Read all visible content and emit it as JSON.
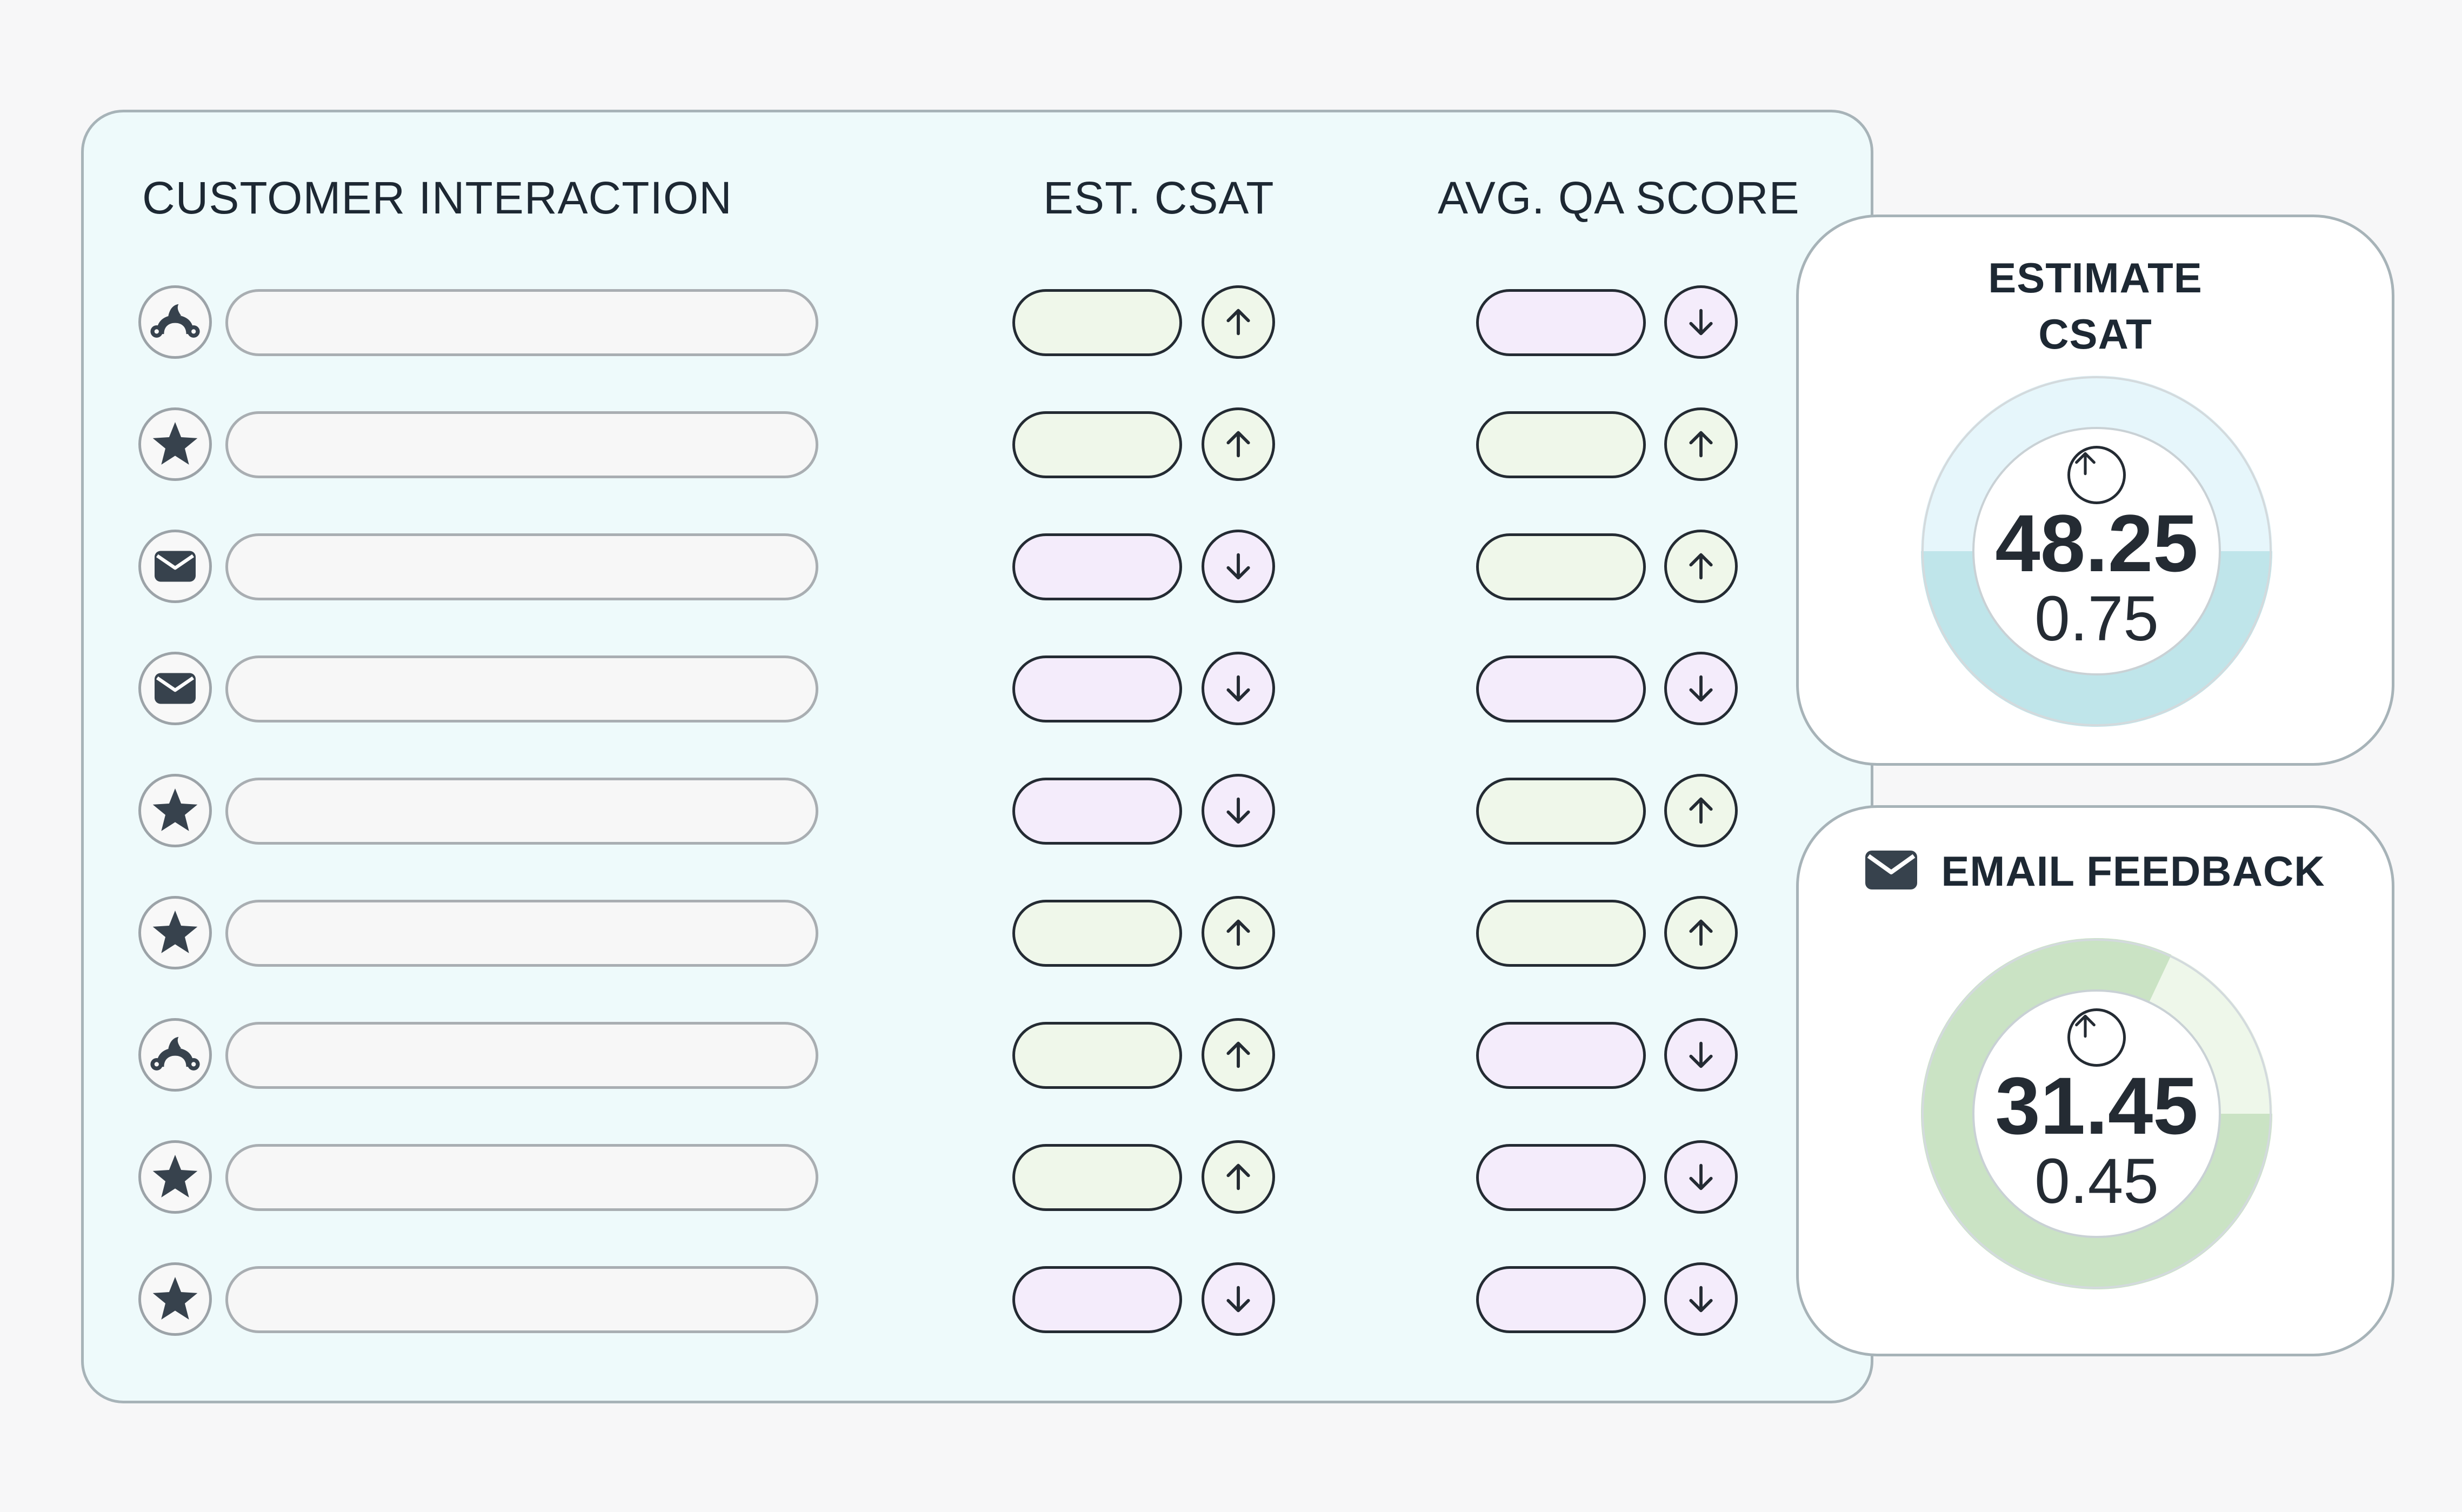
{
  "table": {
    "columns": {
      "interaction": "CUSTOMER INTERACTION",
      "csat": "EST. CSAT",
      "qa": "AVG. QA SCORE"
    },
    "rows": [
      {
        "channel_icon": "surveymonkey-icon",
        "csat_trend": "up",
        "qa_trend": "down"
      },
      {
        "channel_icon": "star-icon",
        "csat_trend": "up",
        "qa_trend": "up"
      },
      {
        "channel_icon": "envelope-icon",
        "csat_trend": "down",
        "qa_trend": "up"
      },
      {
        "channel_icon": "envelope-icon",
        "csat_trend": "down",
        "qa_trend": "down"
      },
      {
        "channel_icon": "star-icon",
        "csat_trend": "down",
        "qa_trend": "up"
      },
      {
        "channel_icon": "star-icon",
        "csat_trend": "up",
        "qa_trend": "up"
      },
      {
        "channel_icon": "surveymonkey-icon",
        "csat_trend": "up",
        "qa_trend": "down"
      },
      {
        "channel_icon": "star-icon",
        "csat_trend": "up",
        "qa_trend": "down"
      },
      {
        "channel_icon": "star-icon",
        "csat_trend": "down",
        "qa_trend": "down"
      }
    ]
  },
  "cards": {
    "estimate_csat": {
      "title_line1": "ESTIMATE",
      "title_line2": "CSAT",
      "value": "48.25",
      "delta": "0.75",
      "trend": "up",
      "fill_fraction": 0.5,
      "ring_color": "#bfe5ea",
      "track_color": "#e6f6fb"
    },
    "email_feedback": {
      "title": "EMAIL FEEDBACK",
      "icon": "envelope-icon",
      "value": "31.45",
      "delta": "0.45",
      "trend": "up",
      "fill_fraction": 0.82,
      "ring_color": "#cae3c4",
      "track_color": "#eef7ea"
    }
  },
  "colors": {
    "panel_bg": "#eefafb",
    "up_fill": "#eff7ea",
    "down_fill": "#f4ecfb",
    "ink": "#242b33"
  }
}
